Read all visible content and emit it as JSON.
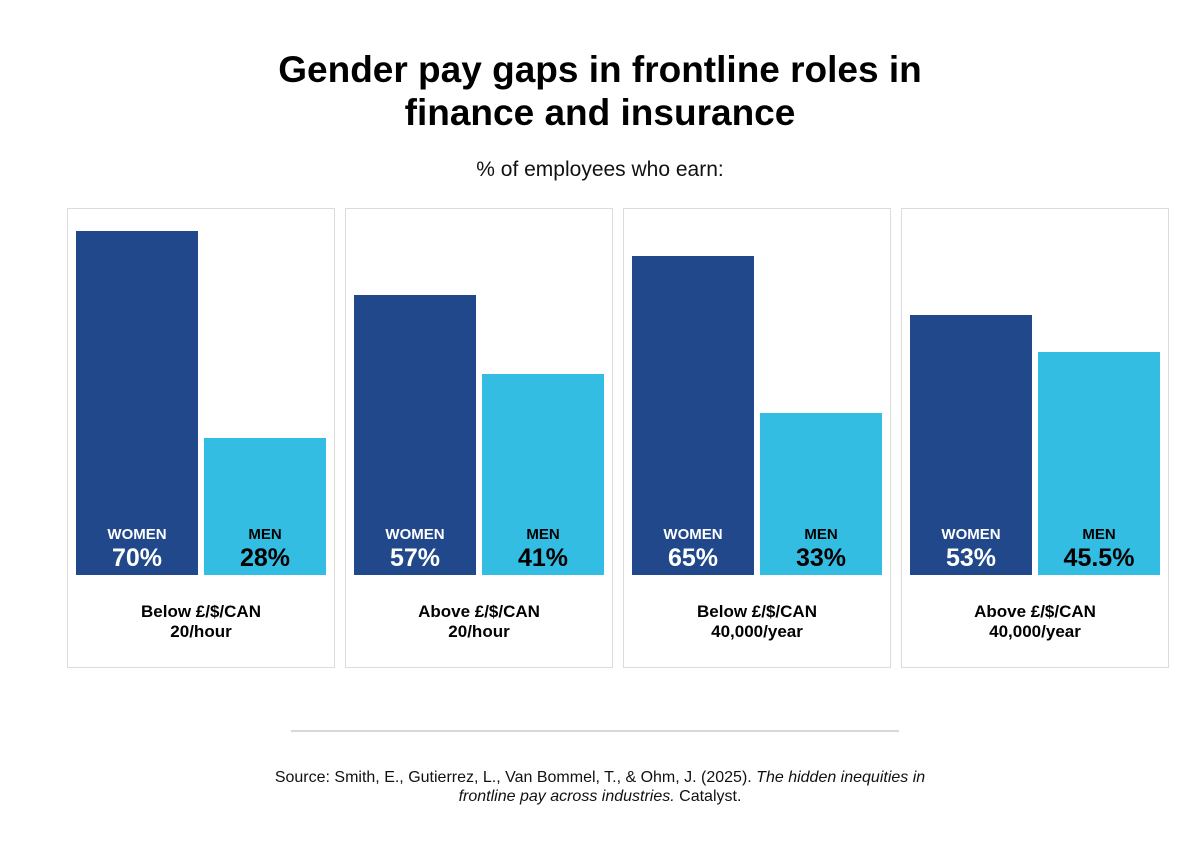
{
  "chart_data": {
    "type": "bar",
    "title": "Gender pay gaps in frontline roles in finance and insurance",
    "title_lines": [
      "Gender pay gaps in frontline roles in",
      "finance and insurance"
    ],
    "subtitle": "% of employees who earn:",
    "ylim": [
      0,
      100
    ],
    "series_labels": [
      "WOMEN",
      "MEN"
    ],
    "colors": {
      "women": "#21488b",
      "men": "#33bde2"
    },
    "panels": [
      {
        "category_lines": [
          "Below £/$/CAN",
          "20/hour"
        ],
        "women": 70,
        "men": 28,
        "women_label": "70%",
        "men_label": "28%"
      },
      {
        "category_lines": [
          "Above £/$/CAN",
          "20/hour"
        ],
        "women": 57,
        "men": 41,
        "women_label": "57%",
        "men_label": "41%"
      },
      {
        "category_lines": [
          "Below £/$/CAN",
          "40,000/year"
        ],
        "women": 65,
        "men": 33,
        "women_label": "65%",
        "men_label": "33%"
      },
      {
        "category_lines": [
          "Above £/$/CAN",
          "40,000/year"
        ],
        "women": 53,
        "men": 45.5,
        "women_label": "53%",
        "men_label": "45.5%"
      }
    ]
  },
  "source": {
    "prefix": "Source: Smith, E., Gutierrez, L., Van Bommel, T., & Ohm, J. (2025). ",
    "title_line1": "The hidden inequities in",
    "title_line2": "frontline pay across industries.",
    "suffix": " Catalyst."
  }
}
